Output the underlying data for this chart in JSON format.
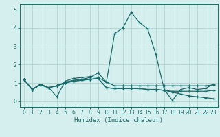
{
  "xlabel": "Humidex (Indice chaleur)",
  "ylabel": "",
  "bg_color": "#d5efee",
  "grid_color": "#b8d8d6",
  "line_color": "#1a6b6b",
  "xlim": [
    -0.5,
    23.5
  ],
  "ylim": [
    -0.3,
    5.3
  ],
  "xticks": [
    0,
    1,
    2,
    3,
    4,
    5,
    6,
    7,
    8,
    9,
    10,
    11,
    12,
    13,
    14,
    15,
    16,
    17,
    18,
    19,
    20,
    21,
    22,
    23
  ],
  "yticks": [
    0,
    1,
    2,
    3,
    4,
    5
  ],
  "series": [
    [
      1.2,
      0.65,
      0.95,
      0.75,
      0.25,
      1.1,
      1.25,
      1.3,
      1.35,
      1.3,
      1.05,
      3.7,
      4.0,
      4.85,
      4.3,
      3.95,
      2.55,
      0.65,
      0.05,
      0.65,
      0.75,
      0.65,
      0.7,
      0.95
    ],
    [
      1.2,
      0.65,
      0.9,
      0.75,
      0.85,
      1.05,
      1.15,
      1.2,
      1.3,
      1.55,
      1.05,
      0.85,
      0.85,
      0.85,
      0.85,
      0.85,
      0.85,
      0.85,
      0.85,
      0.85,
      0.85,
      0.85,
      0.85,
      0.9
    ],
    [
      1.2,
      0.65,
      0.9,
      0.75,
      0.85,
      1.0,
      1.1,
      1.15,
      1.2,
      1.25,
      0.75,
      0.7,
      0.7,
      0.7,
      0.7,
      0.65,
      0.65,
      0.6,
      0.5,
      0.4,
      0.3,
      0.25,
      0.2,
      0.15
    ],
    [
      1.2,
      0.65,
      0.9,
      0.75,
      0.85,
      1.0,
      1.1,
      1.15,
      1.2,
      1.25,
      0.75,
      0.7,
      0.7,
      0.7,
      0.7,
      0.65,
      0.65,
      0.6,
      0.55,
      0.55,
      0.55,
      0.55,
      0.55,
      0.6
    ]
  ]
}
